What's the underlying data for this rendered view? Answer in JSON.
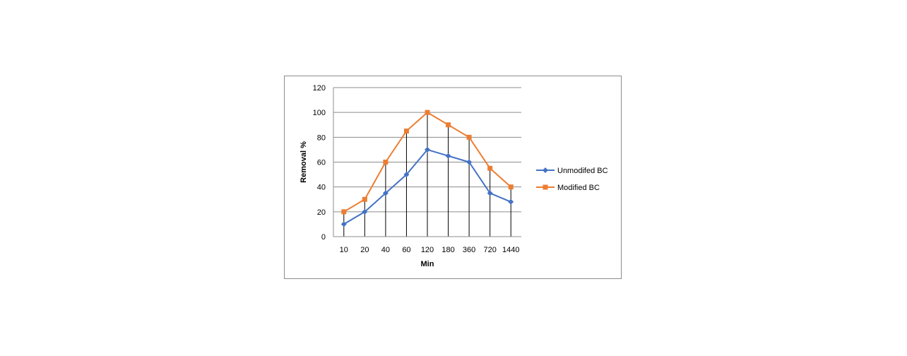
{
  "chart_data": {
    "type": "line",
    "categories": [
      "10",
      "20",
      "40",
      "60",
      "120",
      "180",
      "360",
      "720",
      "1440"
    ],
    "series": [
      {
        "name": "Unmodifed  BC",
        "values": [
          10,
          20,
          35,
          50,
          70,
          65,
          60,
          35,
          28
        ],
        "color": "#4472C4",
        "marker": "diamond"
      },
      {
        "name": "Modified BC",
        "values": [
          20,
          30,
          60,
          85,
          100,
          90,
          80,
          55,
          40
        ],
        "color": "#ED7D31",
        "marker": "square"
      }
    ],
    "xlabel": "Min",
    "ylabel": "Removal %",
    "ylim": [
      0,
      120
    ],
    "yticks": [
      0,
      20,
      40,
      60,
      80,
      100,
      120
    ],
    "grid": true,
    "legend_position": "right"
  }
}
